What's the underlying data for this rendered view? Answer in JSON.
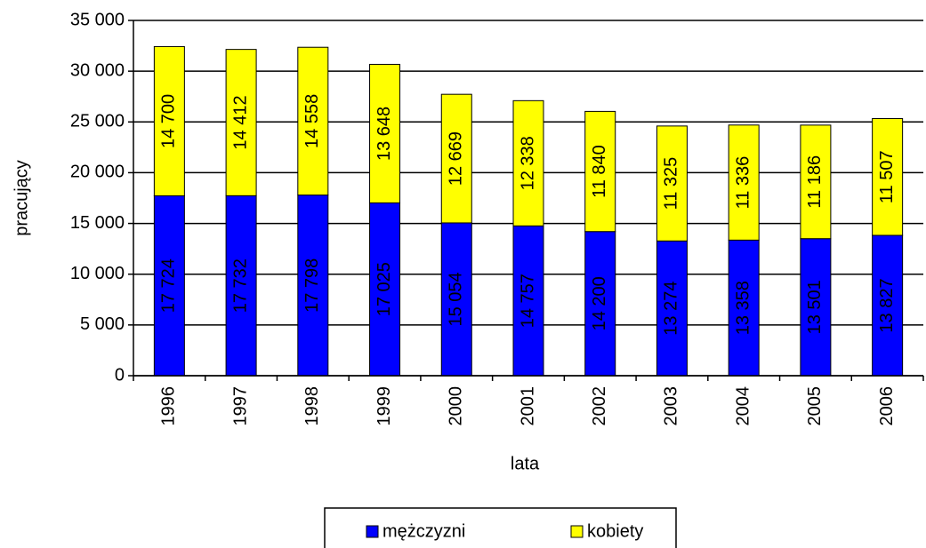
{
  "chart_data": {
    "type": "stacked_bar",
    "categories": [
      "1996",
      "1997",
      "1998",
      "1999",
      "2000",
      "2001",
      "2002",
      "2003",
      "2004",
      "2005",
      "2006"
    ],
    "series": [
      {
        "name": "mężczyzni",
        "color": "#0000ff",
        "values": [
          17724,
          17732,
          17798,
          17025,
          15054,
          14757,
          14200,
          13274,
          13358,
          13501,
          13827
        ],
        "value_labels": [
          "17 724",
          "17 732",
          "17 798",
          "17 025",
          "15 054",
          "14 757",
          "14 200",
          "13 274",
          "13 358",
          "13 501",
          "13 827"
        ]
      },
      {
        "name": "kobiety",
        "color": "#ffff00",
        "values": [
          14700,
          14412,
          14558,
          13648,
          12669,
          12338,
          11840,
          11325,
          11336,
          11186,
          11507
        ],
        "value_labels": [
          "14 700",
          "14 412",
          "14 558",
          "13 648",
          "12 669",
          "12 338",
          "11 840",
          "11 325",
          "11 336",
          "11 186",
          "11 507"
        ]
      }
    ],
    "xlabel": "lata",
    "ylabel": "pracujący",
    "ylim": [
      0,
      35000
    ],
    "yticks": [
      0,
      {
        "value": 5000,
        "label": "5 000"
      },
      {
        "value": 10000,
        "label": "10 000"
      },
      {
        "value": 15000,
        "label": "15 000"
      },
      {
        "value": 20000,
        "label": "20 000"
      },
      {
        "value": 25000,
        "label": "25 000"
      },
      {
        "value": 30000,
        "label": "30 000"
      },
      {
        "value": 35000,
        "label": "35 000"
      }
    ],
    "grid": true,
    "legend": "bottom"
  }
}
